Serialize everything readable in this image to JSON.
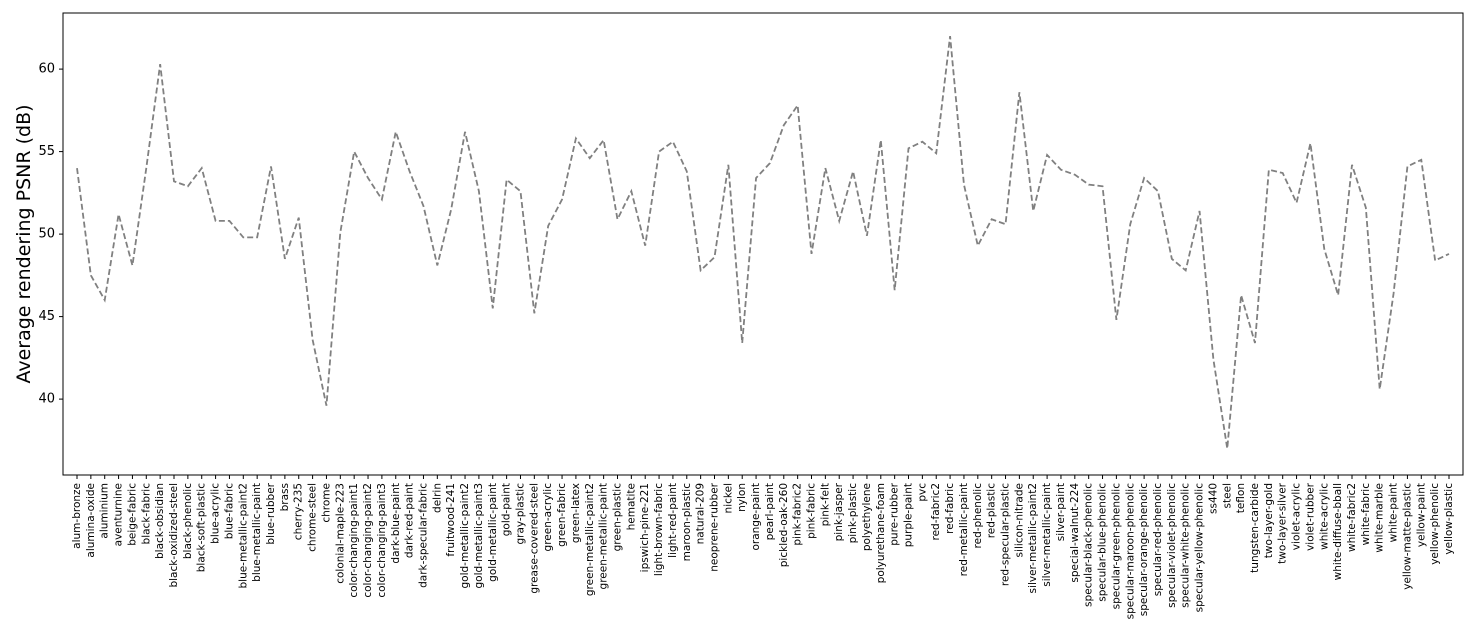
{
  "chart_data": {
    "type": "line",
    "xlabel": "",
    "ylabel": "Average rendering PSNR (dB)",
    "ylim": [
      35.4,
      63.4
    ],
    "yticks": [
      40,
      45,
      50,
      55,
      60
    ],
    "grid": false,
    "legend": "none",
    "line_color": "#808080",
    "line_style": "dashed",
    "categories": [
      "alum-bronze",
      "alumina-oxide",
      "aluminium",
      "aventurnine",
      "beige-fabric",
      "black-fabric",
      "black-obsidian",
      "black-oxidized-steel",
      "black-phenolic",
      "black-soft-plastic",
      "blue-acrylic",
      "blue-fabric",
      "blue-metallic-paint2",
      "blue-metallic-paint",
      "blue-rubber",
      "brass",
      "cherry-235",
      "chrome-steel",
      "chrome",
      "colonial-maple-223",
      "color-changing-paint1",
      "color-changing-paint2",
      "color-changing-paint3",
      "dark-blue-paint",
      "dark-red-paint",
      "dark-specular-fabric",
      "delrin",
      "fruitwood-241",
      "gold-metallic-paint2",
      "gold-metallic-paint3",
      "gold-metallic-paint",
      "gold-paint",
      "gray-plastic",
      "grease-covered-steel",
      "green-acrylic",
      "green-fabric",
      "green-latex",
      "green-metallic-paint2",
      "green-metallic-paint",
      "green-plastic",
      "hematite",
      "ipswich-pine-221",
      "light-brown-fabric",
      "light-red-paint",
      "maroon-plastic",
      "natural-209",
      "neoprene-rubber",
      "nickel",
      "nylon",
      "orange-paint",
      "pearl-paint",
      "pickled-oak-260",
      "pink-fabric2",
      "pink-fabric",
      "pink-felt",
      "pink-jasper",
      "pink-plastic",
      "polyethylene",
      "polyurethane-foam",
      "pure-rubber",
      "purple-paint",
      "pvc",
      "red-fabric2",
      "red-fabric",
      "red-metallic-paint",
      "red-phenolic",
      "red-plastic",
      "red-specular-plastic",
      "silicon-nitrade",
      "silver-metallic-paint2",
      "silver-metallic-paint",
      "silver-paint",
      "special-walnut-224",
      "specular-black-phenolic",
      "specular-blue-phenolic",
      "specular-green-phenolic",
      "specular-maroon-phenolic",
      "specular-orange-phenolic",
      "specular-red-phenolic",
      "specular-violet-phenolic",
      "specular-white-phenolic",
      "specular-yellow-phenolic",
      "ss440",
      "steel",
      "teflon",
      "tungsten-carbide",
      "two-layer-gold",
      "two-layer-silver",
      "violet-acrylic",
      "violet-rubber",
      "white-acrylic",
      "white-diffuse-bball",
      "white-fabric2",
      "white-fabric",
      "white-marble",
      "white-paint",
      "yellow-matte-plastic",
      "yellow-paint",
      "yellow-phenolic",
      "yellow-plastic"
    ],
    "values": [
      54.0,
      47.5,
      46.0,
      51.2,
      48.1,
      54.0,
      60.3,
      53.2,
      52.9,
      54.0,
      50.8,
      50.8,
      49.8,
      49.8,
      54.1,
      48.5,
      51.0,
      43.6,
      39.6,
      50.1,
      55.0,
      53.4,
      52.1,
      56.2,
      53.8,
      51.7,
      48.1,
      51.5,
      56.2,
      52.6,
      45.5,
      53.3,
      52.6,
      45.2,
      50.5,
      52.1,
      55.8,
      54.6,
      55.7,
      50.9,
      52.6,
      49.3,
      55.0,
      55.6,
      53.8,
      47.8,
      48.6,
      54.2,
      43.4,
      53.4,
      54.3,
      56.6,
      57.8,
      48.8,
      54.0,
      50.8,
      53.8,
      49.9,
      55.7,
      46.6,
      55.2,
      55.6,
      54.9,
      62.0,
      53.0,
      49.3,
      50.9,
      50.6,
      58.6,
      51.4,
      54.8,
      53.9,
      53.6,
      53.0,
      52.9,
      44.8,
      50.6,
      53.4,
      52.6,
      48.5,
      47.8,
      51.4,
      42.4,
      37.0,
      46.3,
      43.4,
      53.9,
      53.7,
      51.9,
      55.5,
      49.1,
      46.3,
      54.2,
      51.6,
      40.6,
      46.4,
      54.1,
      54.5,
      48.4,
      48.8
    ]
  }
}
